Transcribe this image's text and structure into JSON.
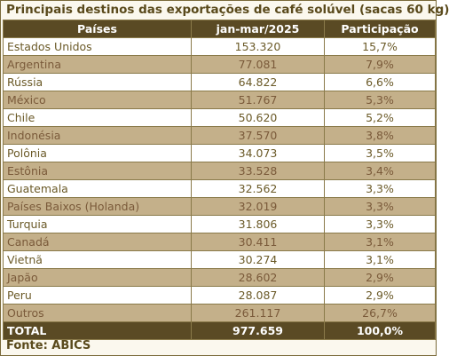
{
  "title": "Principais destinos das exportações de café solúvel (sacas 60 kg)",
  "table": {
    "headers": [
      "Países",
      "jan-mar/2025",
      "Participação"
    ],
    "rows": [
      {
        "country": "Estados Unidos",
        "value": "153.320",
        "share": "15,7%"
      },
      {
        "country": "Argentina",
        "value": "77.081",
        "share": "7,9%"
      },
      {
        "country": "Rússia",
        "value": "64.822",
        "share": "6,6%"
      },
      {
        "country": "México",
        "value": "51.767",
        "share": "5,3%"
      },
      {
        "country": "Chile",
        "value": "50.620",
        "share": "5,2%"
      },
      {
        "country": "Indonésia",
        "value": "37.570",
        "share": "3,8%"
      },
      {
        "country": "Polônia",
        "value": "34.073",
        "share": "3,5%"
      },
      {
        "country": "Estônia",
        "value": "33.528",
        "share": "3,4%"
      },
      {
        "country": "Guatemala",
        "value": "32.562",
        "share": "3,3%"
      },
      {
        "country": "Países Baixos (Holanda)",
        "value": "32.019",
        "share": "3,3%"
      },
      {
        "country": "Turquia",
        "value": "31.806",
        "share": "3,3%"
      },
      {
        "country": "Canadá",
        "value": "30.411",
        "share": "3,1%"
      },
      {
        "country": "Vietnã",
        "value": "30.274",
        "share": "3,1%"
      },
      {
        "country": "Japão",
        "value": "28.602",
        "share": "2,9%"
      },
      {
        "country": "Peru",
        "value": "28.087",
        "share": "2,9%"
      },
      {
        "country": "Outros",
        "value": "261.117",
        "share": "26,7%"
      }
    ],
    "total": {
      "label": "TOTAL",
      "value": "977.659",
      "share": "100,0%"
    }
  },
  "source": "Fonte: ABICS"
}
